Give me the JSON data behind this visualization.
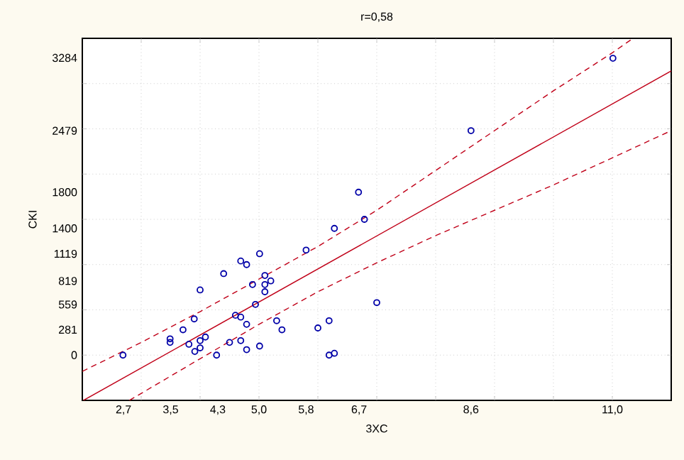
{
  "chart_data": {
    "type": "scatter",
    "title": "r=0,58",
    "xlabel": "3XC",
    "ylabel": "CKI",
    "xlim": [
      2,
      12
    ],
    "ylim": [
      -500,
      3500
    ],
    "xticks": [
      {
        "value": 2.7,
        "label": "2,7"
      },
      {
        "value": 3.5,
        "label": "3,5"
      },
      {
        "value": 4.3,
        "label": "4,3"
      },
      {
        "value": 5.0,
        "label": "5,0"
      },
      {
        "value": 5.8,
        "label": "5,8"
      },
      {
        "value": 6.7,
        "label": "6,7"
      },
      {
        "value": 8.6,
        "label": "8,6"
      },
      {
        "value": 11.0,
        "label": "11,0"
      },
      {
        "value": 3,
        "label": null
      },
      {
        "value": 4,
        "label": null
      },
      {
        "value": 5,
        "label": null
      },
      {
        "value": 6,
        "label": null
      },
      {
        "value": 7,
        "label": null
      },
      {
        "value": 8,
        "label": null
      },
      {
        "value": 9,
        "label": null
      },
      {
        "value": 10,
        "label": null
      },
      {
        "value": 11,
        "label": null
      }
    ],
    "yticks": [
      0,
      281,
      559,
      819,
      1119,
      1400,
      1800,
      2479,
      3284,
      {
        "value": 0,
        "label": null
      },
      {
        "value": 500,
        "label": null
      },
      {
        "value": 1000,
        "label": null
      },
      {
        "value": 1500,
        "label": null
      },
      {
        "value": 2000,
        "label": null
      },
      {
        "value": 2500,
        "label": null
      },
      {
        "value": 3000,
        "label": null
      }
    ],
    "grid": true,
    "series": [
      {
        "marker": "circle",
        "color": "#0000a8",
        "x": [
          2.69,
          3.49,
          3.49,
          3.71,
          3.81,
          3.9,
          3.91,
          4.0,
          4.0,
          4.0,
          4.09,
          4.28,
          4.4,
          4.5,
          4.6,
          4.69,
          4.69,
          4.69,
          4.79,
          4.79,
          4.79,
          4.89,
          4.94,
          5.01,
          5.01,
          5.1,
          5.1,
          5.1,
          5.2,
          5.3,
          5.39,
          5.8,
          6.0,
          6.19,
          6.19,
          6.28,
          6.28,
          6.69,
          6.79,
          7.0,
          8.6,
          11.01
        ],
        "values": [
          0,
          180,
          140,
          280,
          120,
          400,
          40,
          720,
          160,
          80,
          200,
          0,
          900,
          140,
          440,
          1040,
          420,
          160,
          1000,
          340,
          60,
          780,
          560,
          1120,
          100,
          880,
          780,
          700,
          820,
          380,
          280,
          1160,
          300,
          380,
          0,
          20,
          1400,
          1800,
          1500,
          580,
          2480,
          3280
        ]
      },
      {
        "type": "line",
        "line_style": "solid",
        "color": "#c00018",
        "x": [
          2.02,
          12
        ],
        "values": [
          -500,
          3140
        ]
      },
      {
        "type": "line",
        "line_style": "dashed",
        "color": "#c00018",
        "x": [
          2,
          3,
          4,
          5,
          6,
          7,
          8,
          9,
          10,
          11,
          11.35
        ],
        "values": [
          -180,
          140,
          480,
          840,
          1200,
          1600,
          2040,
          2480,
          2920,
          3340,
          3500
        ]
      },
      {
        "type": "line",
        "line_style": "dashed",
        "color": "#c00018",
        "x": [
          2.8,
          4,
          5,
          6,
          7,
          8,
          9,
          10,
          11,
          12
        ],
        "values": [
          -500,
          -40,
          340,
          700,
          1020,
          1320,
          1600,
          1880,
          2180,
          2480
        ]
      }
    ]
  }
}
